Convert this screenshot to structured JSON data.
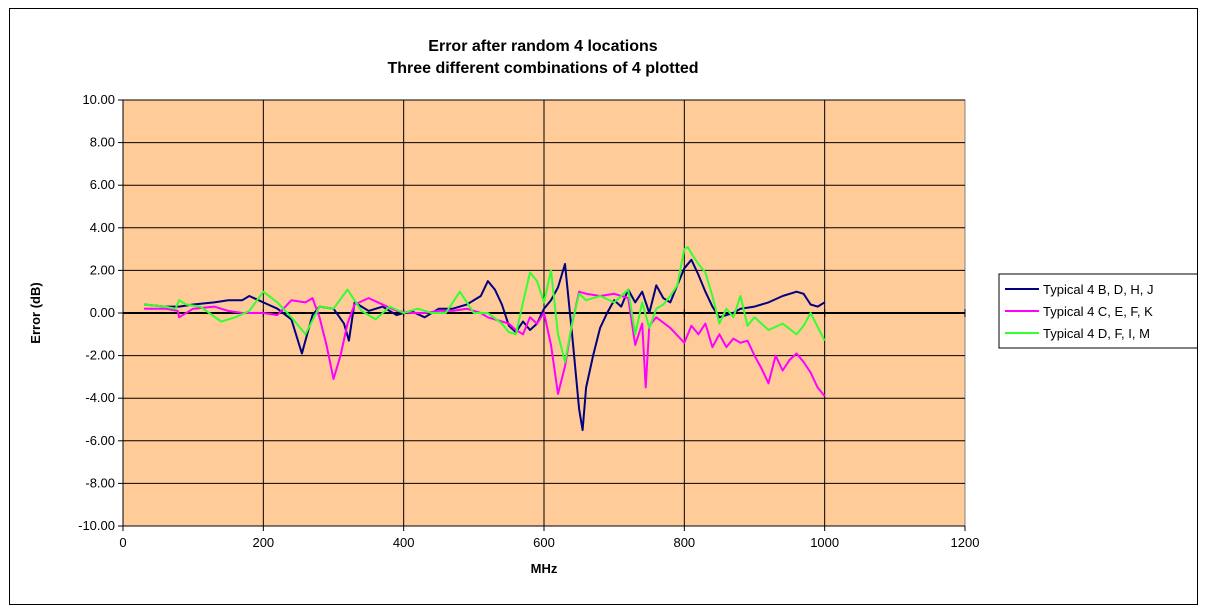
{
  "chart_data": {
    "type": "line",
    "title": [
      "Error after random 4 locations",
      "Three different combinations of 4 plotted"
    ],
    "xlabel": "MHz",
    "ylabel": "Error (dB)",
    "xlim": [
      0,
      1200
    ],
    "ylim": [
      -10,
      10
    ],
    "x_ticks": [
      "0",
      "200",
      "400",
      "600",
      "800",
      "1000",
      "1200"
    ],
    "y_ticks": [
      "10.00",
      "8.00",
      "6.00",
      "4.00",
      "2.00",
      "0.00",
      "-2.00",
      "-4.00",
      "-6.00",
      "-8.00",
      "-10.00"
    ],
    "grid": true,
    "plot_background": "#FFCC99",
    "legend_position": "right",
    "series": [
      {
        "name": "Typical 4 B, D, H, J",
        "color": "#000080",
        "x": [
          30,
          60,
          80,
          100,
          130,
          150,
          170,
          180,
          200,
          220,
          240,
          255,
          260,
          270,
          280,
          300,
          315,
          322,
          330,
          350,
          370,
          390,
          410,
          430,
          450,
          470,
          490,
          510,
          520,
          530,
          540,
          550,
          560,
          570,
          580,
          590,
          600,
          610,
          620,
          630,
          640,
          650,
          655,
          660,
          670,
          680,
          690,
          700,
          710,
          720,
          730,
          740,
          750,
          760,
          770,
          780,
          790,
          800,
          810,
          820,
          830,
          840,
          850,
          860,
          870,
          880,
          900,
          920,
          940,
          960,
          970,
          980,
          990,
          1000
        ],
        "y": [
          0.4,
          0.3,
          0.3,
          0.4,
          0.5,
          0.6,
          0.6,
          0.8,
          0.5,
          0.2,
          -0.3,
          -1.9,
          -1.3,
          -0.1,
          0.3,
          0.2,
          -0.5,
          -1.3,
          0.5,
          0.1,
          0.3,
          -0.1,
          0.1,
          -0.2,
          0.2,
          0.2,
          0.4,
          0.8,
          1.5,
          1.1,
          0.4,
          -0.6,
          -0.9,
          -0.4,
          -0.8,
          -0.5,
          0.2,
          0.6,
          1.2,
          2.3,
          -1.0,
          -4.5,
          -5.5,
          -3.5,
          -2.0,
          -0.7,
          0.0,
          0.6,
          0.3,
          1.1,
          0.5,
          1.0,
          0.0,
          1.3,
          0.7,
          0.5,
          1.3,
          2.1,
          2.5,
          1.8,
          1.0,
          0.3,
          -0.2,
          -0.1,
          0.0,
          0.2,
          0.3,
          0.5,
          0.8,
          1.0,
          0.9,
          0.4,
          0.3,
          0.5
        ]
      },
      {
        "name": "Typical 4 C, E, F, K",
        "color": "#FF00FF",
        "x": [
          30,
          60,
          78,
          80,
          100,
          130,
          150,
          170,
          200,
          220,
          240,
          260,
          270,
          280,
          290,
          300,
          310,
          320,
          330,
          350,
          370,
          390,
          410,
          430,
          450,
          470,
          490,
          510,
          520,
          530,
          540,
          550,
          560,
          570,
          580,
          590,
          600,
          610,
          620,
          630,
          640,
          650,
          660,
          680,
          700,
          720,
          730,
          740,
          745,
          750,
          760,
          780,
          800,
          810,
          820,
          830,
          840,
          850,
          860,
          870,
          880,
          890,
          900,
          910,
          920,
          930,
          940,
          950,
          960,
          970,
          980,
          990,
          1000
        ],
        "y": [
          0.2,
          0.2,
          0.1,
          -0.2,
          0.2,
          0.3,
          0.1,
          0.0,
          0.0,
          -0.1,
          0.6,
          0.5,
          0.7,
          -0.2,
          -1.5,
          -3.1,
          -2.0,
          -0.5,
          0.4,
          0.7,
          0.4,
          0.1,
          0.0,
          0.0,
          0.1,
          0.1,
          0.2,
          0.0,
          -0.2,
          -0.3,
          -0.4,
          -0.5,
          -0.8,
          -1.0,
          -0.2,
          -0.5,
          0.0,
          -1.5,
          -3.8,
          -2.5,
          -0.5,
          1.0,
          0.9,
          0.8,
          0.9,
          0.7,
          -1.5,
          -0.5,
          -3.5,
          -0.6,
          -0.2,
          -0.7,
          -1.4,
          -0.6,
          -1.0,
          -0.5,
          -1.6,
          -1.0,
          -1.6,
          -1.2,
          -1.4,
          -1.3,
          -2.0,
          -2.6,
          -3.3,
          -2.0,
          -2.7,
          -2.2,
          -1.9,
          -2.3,
          -2.8,
          -3.5,
          -3.9
        ]
      },
      {
        "name": "Typical 4 D, F, I, M",
        "color": "#33FF33",
        "x": [
          30,
          60,
          75,
          80,
          90,
          110,
          140,
          160,
          180,
          200,
          220,
          240,
          260,
          280,
          300,
          320,
          340,
          360,
          380,
          400,
          420,
          440,
          460,
          480,
          500,
          520,
          540,
          550,
          560,
          570,
          580,
          590,
          600,
          610,
          620,
          630,
          640,
          650,
          660,
          680,
          700,
          720,
          730,
          740,
          750,
          760,
          770,
          780,
          790,
          800,
          805,
          810,
          820,
          830,
          840,
          850,
          860,
          870,
          880,
          890,
          900,
          920,
          940,
          960,
          970,
          980,
          1000
        ],
        "y": [
          0.4,
          0.3,
          0.2,
          0.6,
          0.4,
          0.3,
          -0.4,
          -0.2,
          0.1,
          1.0,
          0.5,
          -0.2,
          -1.0,
          0.3,
          0.2,
          1.1,
          0.1,
          -0.3,
          0.3,
          0.0,
          0.2,
          0.0,
          0.0,
          1.0,
          0.0,
          0.0,
          -0.5,
          -0.9,
          -1.0,
          0.5,
          1.9,
          1.5,
          0.5,
          2.0,
          -1.0,
          -2.3,
          -0.5,
          0.9,
          0.6,
          0.8,
          0.5,
          1.1,
          -1.0,
          0.5,
          -0.7,
          0.2,
          0.4,
          0.8,
          1.3,
          3.0,
          3.1,
          2.8,
          2.3,
          1.9,
          0.8,
          -0.5,
          0.2,
          -0.2,
          0.8,
          -0.6,
          -0.2,
          -0.8,
          -0.5,
          -1.0,
          -0.6,
          0.0,
          -1.3
        ]
      }
    ]
  }
}
